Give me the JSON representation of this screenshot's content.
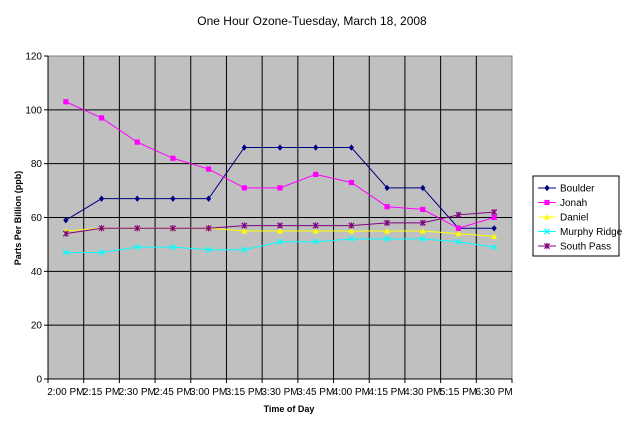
{
  "chart_data": {
    "type": "line",
    "title": "One Hour Ozone-Tuesday, March 18, 2008",
    "xlabel": "Time of Day",
    "ylabel": "Parts Per Billion (ppb)",
    "ylim": [
      0,
      120
    ],
    "yticks": [
      0,
      20,
      40,
      60,
      80,
      100,
      120
    ],
    "grid": true,
    "legend_position": "right",
    "plot_background": "#C0C0C0",
    "categories": [
      "2:00 PM",
      "2:15 PM",
      "2:30 PM",
      "2:45 PM",
      "3:00 PM",
      "3:15 PM",
      "3:30 PM",
      "3:45 PM",
      "4:00 PM",
      "4:15 PM",
      "4:30 PM",
      "5:15 PM",
      "6:30 PM"
    ],
    "series": [
      {
        "name": "Boulder",
        "color": "#000080",
        "marker": "diamond",
        "values": [
          59,
          67,
          67,
          67,
          67,
          86,
          86,
          86,
          86,
          71,
          71,
          56,
          56
        ]
      },
      {
        "name": "Jonah",
        "color": "#FF00FF",
        "marker": "square",
        "values": [
          103,
          97,
          88,
          82,
          78,
          71,
          71,
          76,
          73,
          64,
          63,
          56,
          60
        ]
      },
      {
        "name": "Daniel",
        "color": "#FFFF00",
        "marker": "triangle",
        "values": [
          55,
          56,
          56,
          56,
          56,
          55,
          55,
          55,
          55,
          55,
          55,
          54,
          53
        ]
      },
      {
        "name": "Murphy Ridge",
        "color": "#00FFFF",
        "marker": "x",
        "values": [
          47,
          47,
          49,
          49,
          48,
          48,
          51,
          51,
          52,
          52,
          52,
          51,
          49
        ]
      },
      {
        "name": "South Pass",
        "color": "#800080",
        "marker": "star",
        "values": [
          54,
          56,
          56,
          56,
          56,
          57,
          57,
          57,
          57,
          58,
          58,
          61,
          62
        ]
      }
    ]
  }
}
